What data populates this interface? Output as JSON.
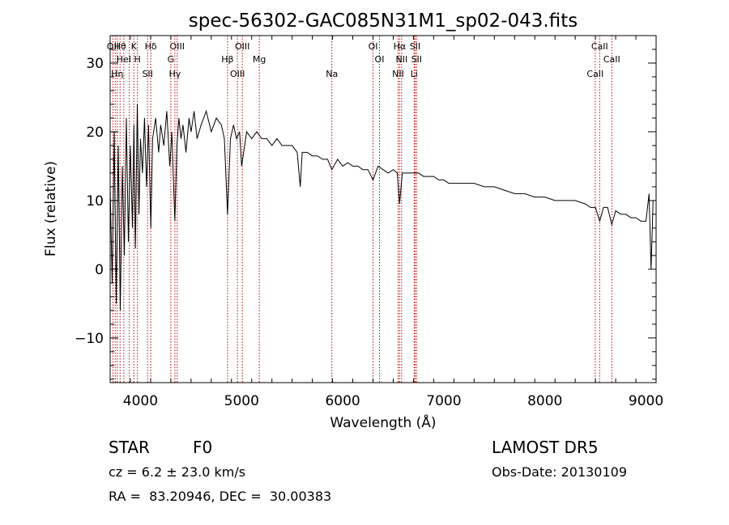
{
  "chart_data": {
    "type": "line",
    "title": "spec-56302-GAC085N31M1_sp02-043.fits",
    "xlabel": "Wavelength (Å)",
    "ylabel": "Flux (relative)",
    "xlim": [
      3700,
      9100
    ],
    "ylim": [
      -16.5,
      34
    ],
    "xticks": [
      4000,
      5000,
      6000,
      7000,
      8000,
      9000
    ],
    "yticks": [
      -10,
      0,
      10,
      20,
      30
    ],
    "grid": false,
    "series": [
      {
        "color": "#000000",
        "x": [
          3700,
          3720,
          3740,
          3760,
          3780,
          3800,
          3820,
          3840,
          3860,
          3880,
          3900,
          3920,
          3935,
          3950,
          3968,
          3985,
          4000,
          4020,
          4040,
          4060,
          4080,
          4102,
          4120,
          4150,
          4180,
          4200,
          4230,
          4260,
          4290,
          4310,
          4340,
          4360,
          4380,
          4400,
          4420,
          4450,
          4480,
          4500,
          4530,
          4560,
          4600,
          4650,
          4700,
          4750,
          4800,
          4830,
          4861,
          4890,
          4920,
          4950,
          4980,
          5000,
          5050,
          5100,
          5150,
          5200,
          5250,
          5300,
          5350,
          5400,
          5450,
          5500,
          5550,
          5580,
          5600,
          5650,
          5700,
          5750,
          5800,
          5850,
          5893,
          5950,
          6000,
          6050,
          6100,
          6150,
          6200,
          6250,
          6300,
          6350,
          6400,
          6450,
          6500,
          6540,
          6563,
          6590,
          6620,
          6650,
          6700,
          6750,
          6800,
          6850,
          6900,
          6950,
          7000,
          7050,
          7100,
          7150,
          7200,
          7300,
          7400,
          7500,
          7600,
          7700,
          7800,
          7900,
          8000,
          8100,
          8200,
          8300,
          8400,
          8450,
          8500,
          8542,
          8580,
          8620,
          8662,
          8700,
          8750,
          8800,
          8850,
          8900,
          8950,
          9000,
          9030,
          9050,
          9070
        ],
        "y": [
          12,
          -2,
          20,
          -5,
          18,
          -6,
          15,
          2,
          22,
          4,
          18,
          6,
          21,
          3,
          24,
          8,
          19,
          14,
          22,
          12,
          21,
          6,
          19,
          22,
          17,
          21,
          18,
          23,
          15,
          20,
          7,
          18,
          22,
          19,
          21,
          17,
          22,
          20,
          23,
          19,
          21,
          23,
          20,
          22,
          21,
          19,
          8,
          19,
          21,
          19,
          20,
          15,
          20,
          19,
          20,
          19,
          19,
          18,
          19,
          18,
          18,
          18,
          17,
          12,
          17,
          17,
          16.5,
          16.5,
          16,
          16,
          14.5,
          16,
          15,
          15.5,
          15,
          15,
          14.5,
          14.5,
          13,
          15,
          14.5,
          14,
          14.5,
          14,
          9.5,
          14,
          14,
          14,
          14,
          14,
          13.5,
          13.5,
          13.5,
          13,
          13,
          12.5,
          12.5,
          12.5,
          12.5,
          12.5,
          12,
          12,
          11.5,
          11,
          11,
          10.5,
          10.5,
          10,
          10,
          10,
          9.5,
          9,
          9,
          7,
          9,
          9,
          6.5,
          8.5,
          8,
          8,
          7.5,
          7.5,
          7,
          7,
          11,
          0,
          10
        ]
      }
    ],
    "line_markers": [
      {
        "wave": 3727,
        "labels": [
          "OII"
        ]
      },
      {
        "wave": 3750,
        "labels": [
          ""
        ]
      },
      {
        "wave": 3770,
        "labels": [
          "Hη"
        ]
      },
      {
        "wave": 3798,
        "labels": [
          "Hθ"
        ]
      },
      {
        "wave": 3835,
        "labels": [
          "HeI"
        ]
      },
      {
        "wave": 3889,
        "labels": [
          ""
        ]
      },
      {
        "wave": 3934,
        "labels": [
          "K"
        ]
      },
      {
        "wave": 3970,
        "labels": [
          "H"
        ]
      },
      {
        "wave": 4070,
        "labels": [
          "SII"
        ]
      },
      {
        "wave": 4102,
        "labels": [
          "Hδ"
        ]
      },
      {
        "wave": 4300,
        "labels": [
          "G"
        ]
      },
      {
        "wave": 4340,
        "labels": [
          "Hγ"
        ]
      },
      {
        "wave": 4363,
        "labels": [
          "OIII"
        ]
      },
      {
        "wave": 4861,
        "labels": [
          "Hβ"
        ]
      },
      {
        "wave": 4959,
        "labels": [
          "OIII"
        ]
      },
      {
        "wave": 5007,
        "labels": [
          "OIII"
        ]
      },
      {
        "wave": 5175,
        "labels": [
          "Mg"
        ]
      },
      {
        "wave": 5893,
        "labels": [
          "Na"
        ]
      },
      {
        "wave": 6300,
        "labels": [
          "OI"
        ]
      },
      {
        "wave": 6364,
        "labels": [
          "OI"
        ]
      },
      {
        "wave": 6548,
        "labels": [
          "NII"
        ]
      },
      {
        "wave": 6563,
        "labels": [
          "Hα"
        ]
      },
      {
        "wave": 6583,
        "labels": [
          "NII"
        ]
      },
      {
        "wave": 6707,
        "labels": [
          "Li"
        ]
      },
      {
        "wave": 6716,
        "labels": [
          "SII"
        ]
      },
      {
        "wave": 6731,
        "labels": [
          "SII"
        ]
      },
      {
        "wave": 8498,
        "labels": [
          "CaII"
        ]
      },
      {
        "wave": 8542,
        "labels": [
          "CaII"
        ]
      },
      {
        "wave": 8662,
        "labels": [
          "CaII"
        ]
      }
    ]
  },
  "info": {
    "class": "STAR",
    "subclass": "F0",
    "survey": "LAMOST DR5",
    "cz": "cz = 6.2 ± 23.0 km/s",
    "obs_date": "Obs-Date: 20130109",
    "radec": "RA =  83.20946, DEC =  30.00383"
  }
}
